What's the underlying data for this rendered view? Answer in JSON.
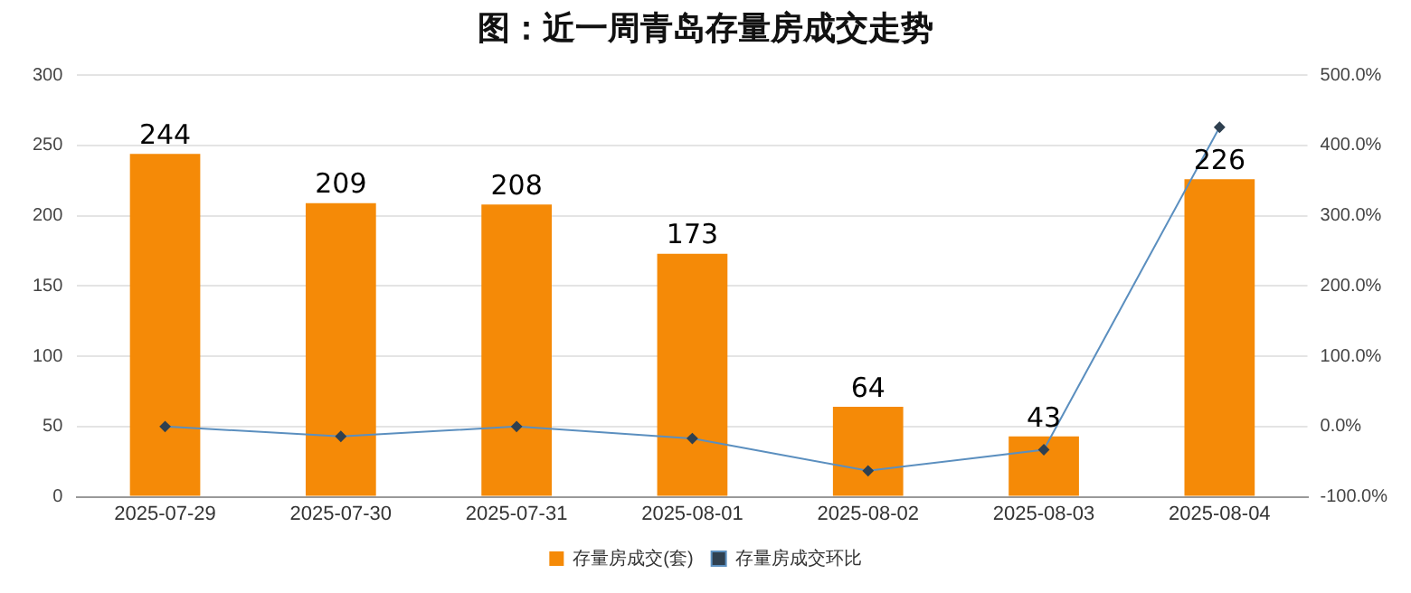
{
  "chart_data": {
    "type": "bar",
    "title": "图：近一周青岛存量房成交走势",
    "categories": [
      "2025-07-29",
      "2025-07-30",
      "2025-07-31",
      "2025-08-01",
      "2025-08-02",
      "2025-08-03",
      "2025-08-04"
    ],
    "series": [
      {
        "name": "存量房成交(套)",
        "color": "#f58a07",
        "values": [
          244,
          209,
          208,
          173,
          64,
          43,
          226
        ],
        "value_labels": [
          "244",
          "209",
          "208",
          "173",
          "64",
          "43",
          "226"
        ]
      },
      {
        "name": "存量房成交环比",
        "type": "line",
        "axis": "y2",
        "color": "#5b8fbf",
        "marker": "diamond",
        "values": [
          0,
          -14,
          0,
          -17,
          -63,
          -33,
          426
        ]
      }
    ],
    "ylim": [
      0,
      300
    ],
    "yticks": [
      0,
      50,
      100,
      150,
      200,
      250,
      300
    ],
    "y2lim": [
      -100,
      500
    ],
    "y2ticks": [
      {
        "value": -100,
        "label": "-100.0%"
      },
      {
        "value": 0,
        "label": "0.0%"
      },
      {
        "value": 100,
        "label": "100.0%"
      },
      {
        "value": 200,
        "label": "200.0%"
      },
      {
        "value": 300,
        "label": "300.0%"
      },
      {
        "value": 400,
        "label": "400.0%"
      },
      {
        "value": 500,
        "label": "500.0%"
      }
    ],
    "grid": "y",
    "legend": "bottom"
  }
}
